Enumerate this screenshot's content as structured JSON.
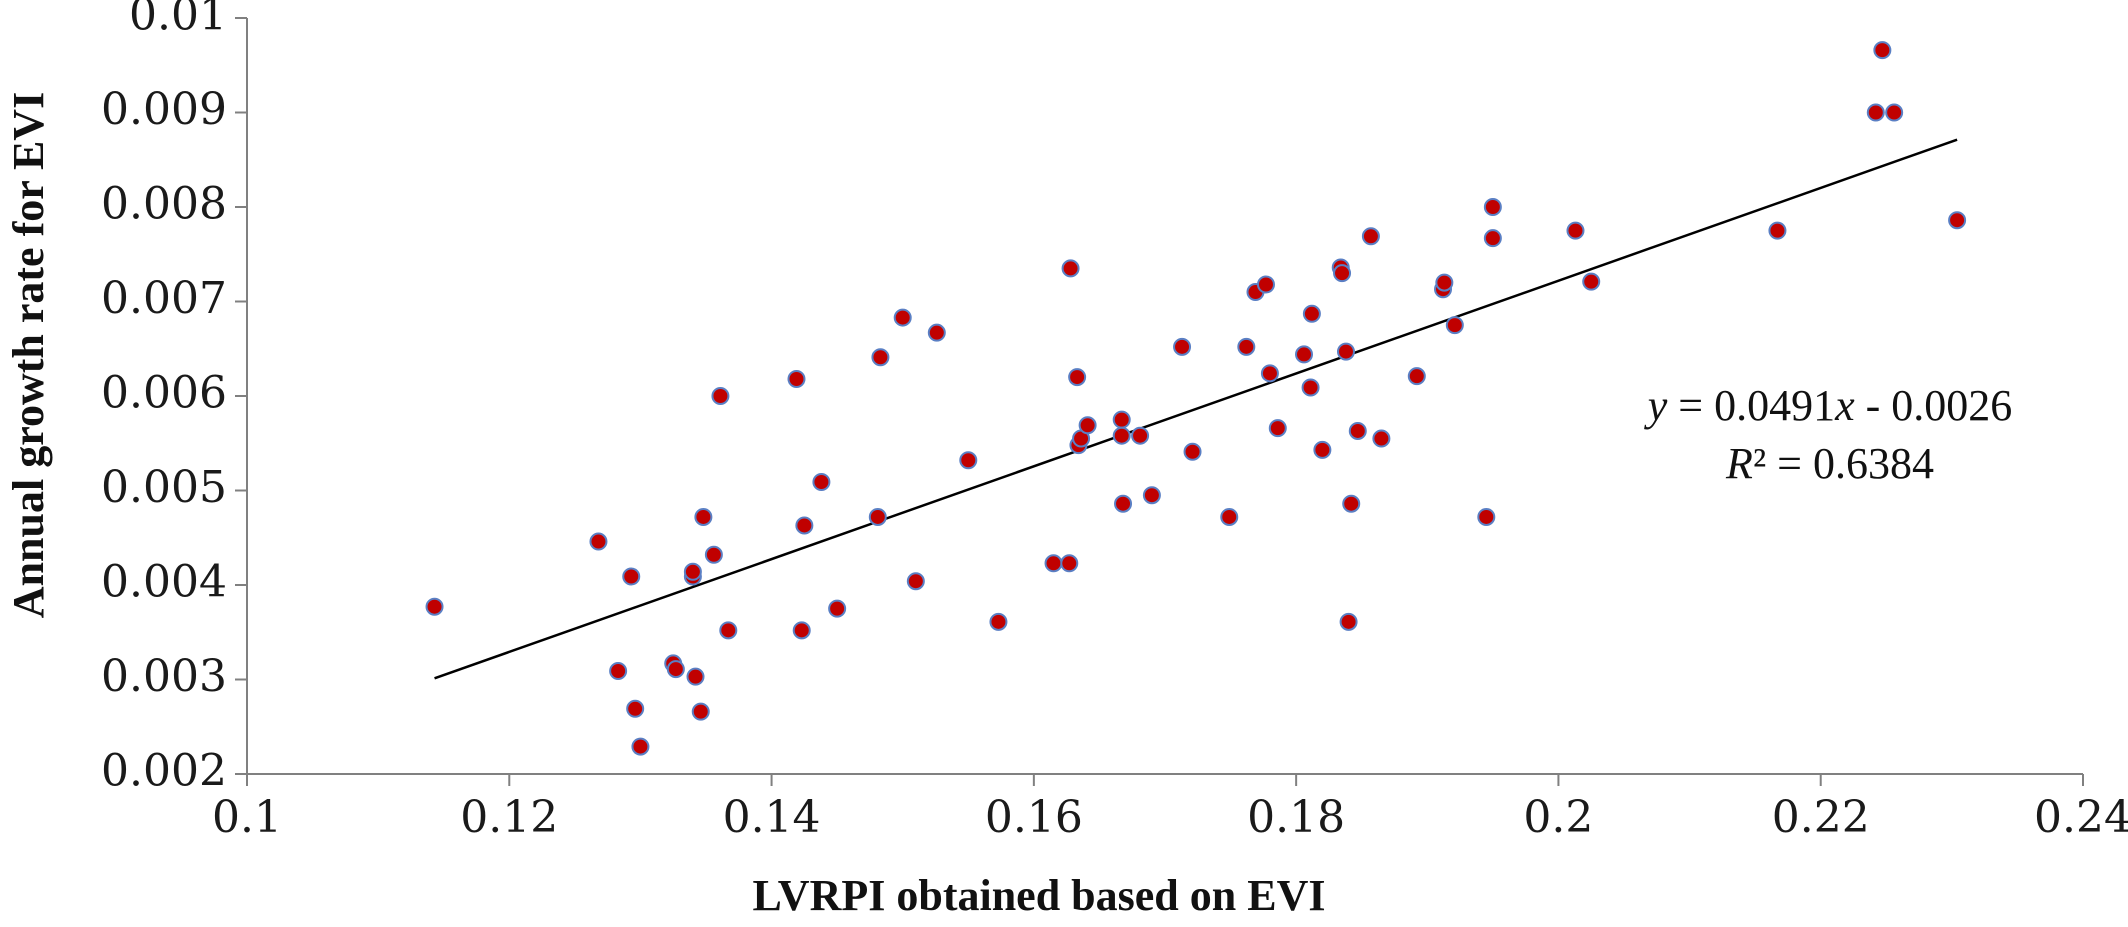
{
  "chart_data": {
    "type": "scatter",
    "xlabel": "LVRPI obtained based on EVI",
    "ylabel": "Annual  growth rate for EVI",
    "xlim": [
      0.1,
      0.24
    ],
    "ylim": [
      0.002,
      0.01
    ],
    "x_ticks": [
      0.1,
      0.12,
      0.14,
      0.16,
      0.18,
      0.2,
      0.22,
      0.24
    ],
    "x_tick_labels": [
      "0.1",
      "0.12",
      "0.14",
      "0.16",
      "0.18",
      "0.2",
      "0.22",
      "0.24"
    ],
    "y_ticks": [
      0.002,
      0.003,
      0.004,
      0.005,
      0.006,
      0.007,
      0.008,
      0.009,
      0.01
    ],
    "y_tick_labels": [
      "0.002",
      "0.003",
      "0.004",
      "0.005",
      "0.006",
      "0.007",
      "0.008",
      "0.009",
      "0.01"
    ],
    "grid": false,
    "marker_color": "#c00000",
    "marker_edge_color": "#5a7fc4",
    "points": [
      [
        0.1143,
        0.00377
      ],
      [
        0.1268,
        0.00446
      ],
      [
        0.1283,
        0.00309
      ],
      [
        0.1293,
        0.00409
      ],
      [
        0.1296,
        0.00269
      ],
      [
        0.13,
        0.00229
      ],
      [
        0.1325,
        0.00317
      ],
      [
        0.1327,
        0.00311
      ],
      [
        0.134,
        0.00409
      ],
      [
        0.134,
        0.00414
      ],
      [
        0.1342,
        0.00303
      ],
      [
        0.1346,
        0.00266
      ],
      [
        0.1348,
        0.00472
      ],
      [
        0.1356,
        0.00432
      ],
      [
        0.1361,
        0.006
      ],
      [
        0.1367,
        0.00352
      ],
      [
        0.1419,
        0.00618
      ],
      [
        0.1423,
        0.00352
      ],
      [
        0.1425,
        0.00463
      ],
      [
        0.1438,
        0.00509
      ],
      [
        0.145,
        0.00375
      ],
      [
        0.1481,
        0.00472
      ],
      [
        0.1483,
        0.00641
      ],
      [
        0.15,
        0.00683
      ],
      [
        0.151,
        0.00404
      ],
      [
        0.1526,
        0.00667
      ],
      [
        0.155,
        0.00532
      ],
      [
        0.1573,
        0.00361
      ],
      [
        0.1615,
        0.00423
      ],
      [
        0.1627,
        0.00423
      ],
      [
        0.1628,
        0.00735
      ],
      [
        0.1633,
        0.0062
      ],
      [
        0.1634,
        0.00548
      ],
      [
        0.1636,
        0.00555
      ],
      [
        0.1641,
        0.00569
      ],
      [
        0.1667,
        0.00575
      ],
      [
        0.1667,
        0.00558
      ],
      [
        0.1668,
        0.00486
      ],
      [
        0.1681,
        0.00558
      ],
      [
        0.169,
        0.00495
      ],
      [
        0.1713,
        0.00652
      ],
      [
        0.1721,
        0.00541
      ],
      [
        0.1749,
        0.00472
      ],
      [
        0.1762,
        0.00652
      ],
      [
        0.1769,
        0.0071
      ],
      [
        0.1777,
        0.00718
      ],
      [
        0.178,
        0.00624
      ],
      [
        0.1786,
        0.00566
      ],
      [
        0.1806,
        0.00644
      ],
      [
        0.1811,
        0.00609
      ],
      [
        0.1812,
        0.00687
      ],
      [
        0.182,
        0.00543
      ],
      [
        0.1834,
        0.00736
      ],
      [
        0.1835,
        0.0073
      ],
      [
        0.1838,
        0.00647
      ],
      [
        0.184,
        0.00361
      ],
      [
        0.1842,
        0.00486
      ],
      [
        0.1847,
        0.00563
      ],
      [
        0.1857,
        0.00769
      ],
      [
        0.1865,
        0.00555
      ],
      [
        0.1892,
        0.00621
      ],
      [
        0.1912,
        0.00713
      ],
      [
        0.1913,
        0.0072
      ],
      [
        0.1921,
        0.00675
      ],
      [
        0.1945,
        0.00472
      ],
      [
        0.195,
        0.008
      ],
      [
        0.195,
        0.00767
      ],
      [
        0.2013,
        0.00775
      ],
      [
        0.2025,
        0.00721
      ],
      [
        0.2167,
        0.00775
      ],
      [
        0.2242,
        0.009
      ],
      [
        0.2247,
        0.00966
      ],
      [
        0.2256,
        0.009
      ],
      [
        0.2304,
        0.00786
      ]
    ],
    "trendline": {
      "slope": 0.0491,
      "intercept": -0.0026,
      "x_range": [
        0.1143,
        0.2304
      ]
    },
    "annotations": [
      {
        "id": "equation",
        "var": "y",
        "rest": " = 0.0491",
        "var2": "x",
        "rest2": " - 0.0026"
      },
      {
        "id": "r2",
        "var": "R",
        "rest": "² = 0.6384"
      }
    ]
  }
}
